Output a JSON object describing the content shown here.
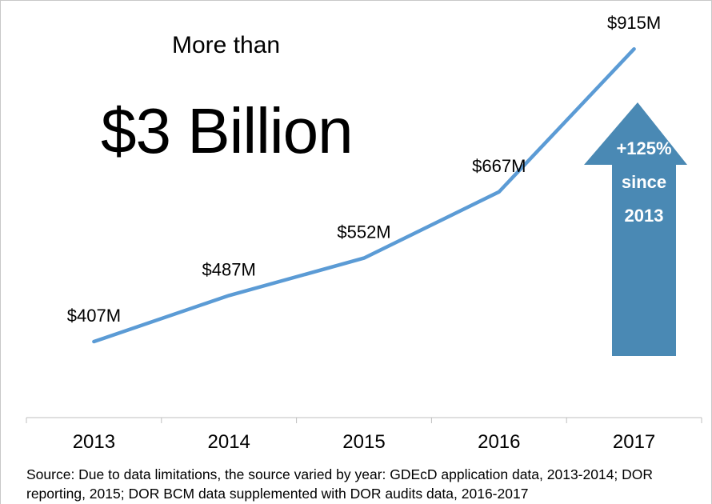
{
  "headline": {
    "prefix": "More than",
    "amount": "$3 Billion"
  },
  "callout": {
    "line1": "+125%",
    "line2": "since",
    "line3": "2013",
    "color": "#4a89b4"
  },
  "source_note": "Source: Due to data limitations, the source varied by year: GDEcD application data, 2013-2014; DOR reporting, 2015; DOR BCM data supplemented with DOR audits data, 2016-2017",
  "chart_data": {
    "type": "line",
    "categories": [
      "2013",
      "2014",
      "2015",
      "2016",
      "2017"
    ],
    "values": [
      407,
      487,
      552,
      667,
      915
    ],
    "data_labels": [
      "$407M",
      "$487M",
      "$552M",
      "$667M",
      "$915M"
    ],
    "ylim": [
      250,
      1000
    ],
    "line_color": "#5b9bd5",
    "grid": false,
    "legend": "none",
    "ylabel": "",
    "xlabel": ""
  }
}
